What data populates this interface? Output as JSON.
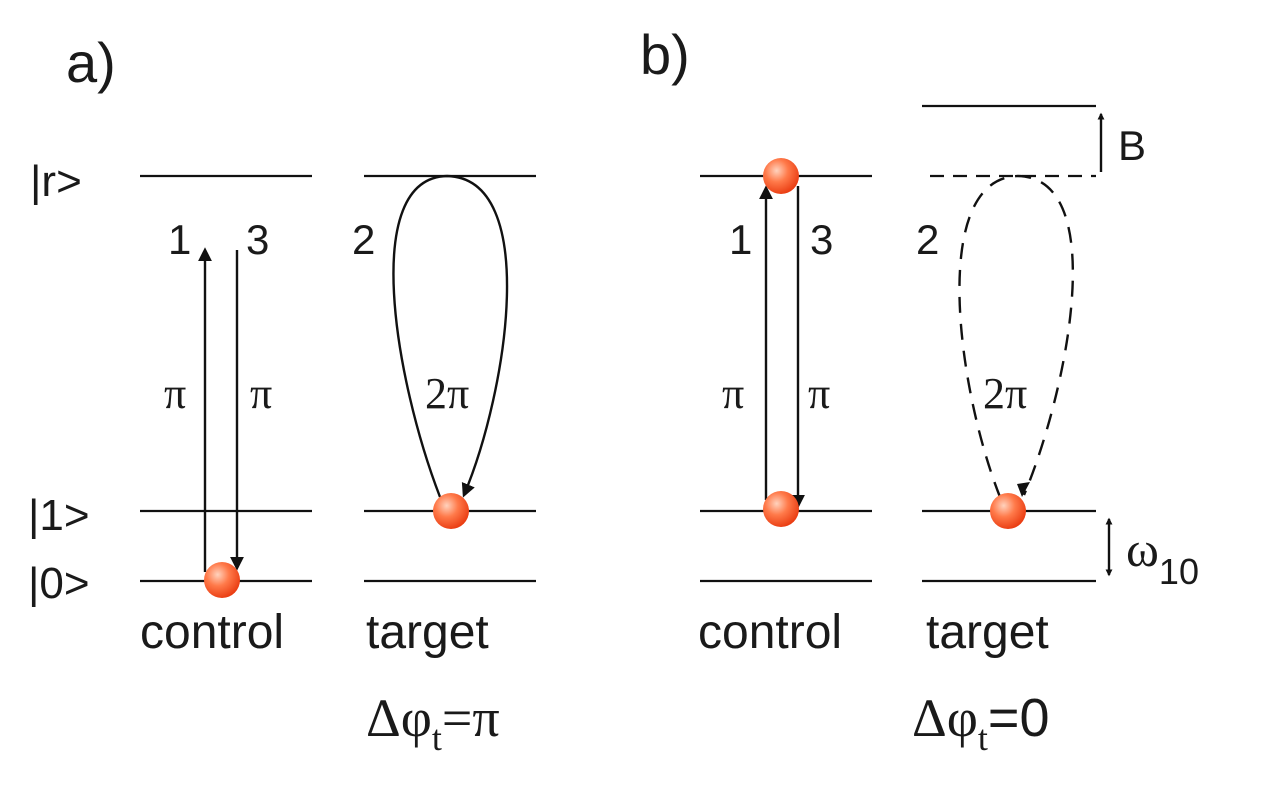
{
  "panel_a": {
    "label": "a)",
    "levels": {
      "r": "|r>",
      "one": "|1>",
      "zero": "|0>"
    },
    "steps": {
      "s1": "1",
      "s3": "3",
      "s2": "2"
    },
    "pulses": {
      "up": "π",
      "down": "π",
      "loop": "2π"
    },
    "qubits": {
      "control": "control",
      "target": "target"
    },
    "phase": {
      "prefix": "Δφ",
      "sub": "t",
      "suffix": "=π"
    }
  },
  "panel_b": {
    "label": "b)",
    "steps": {
      "s1": "1",
      "s3": "3",
      "s2": "2"
    },
    "pulses": {
      "up": "π",
      "down": "π",
      "loop": "2π"
    },
    "qubits": {
      "control": "control",
      "target": "target"
    },
    "shift_label": "B",
    "freq": {
      "symbol": "ω",
      "sub": "10"
    },
    "phase": {
      "prefix": "Δφ",
      "sub": "t",
      "suffix": "=0"
    }
  },
  "colors": {
    "atom": "#f04a1c",
    "atom_highlight": "#ffd2bd",
    "line": "#111111"
  }
}
